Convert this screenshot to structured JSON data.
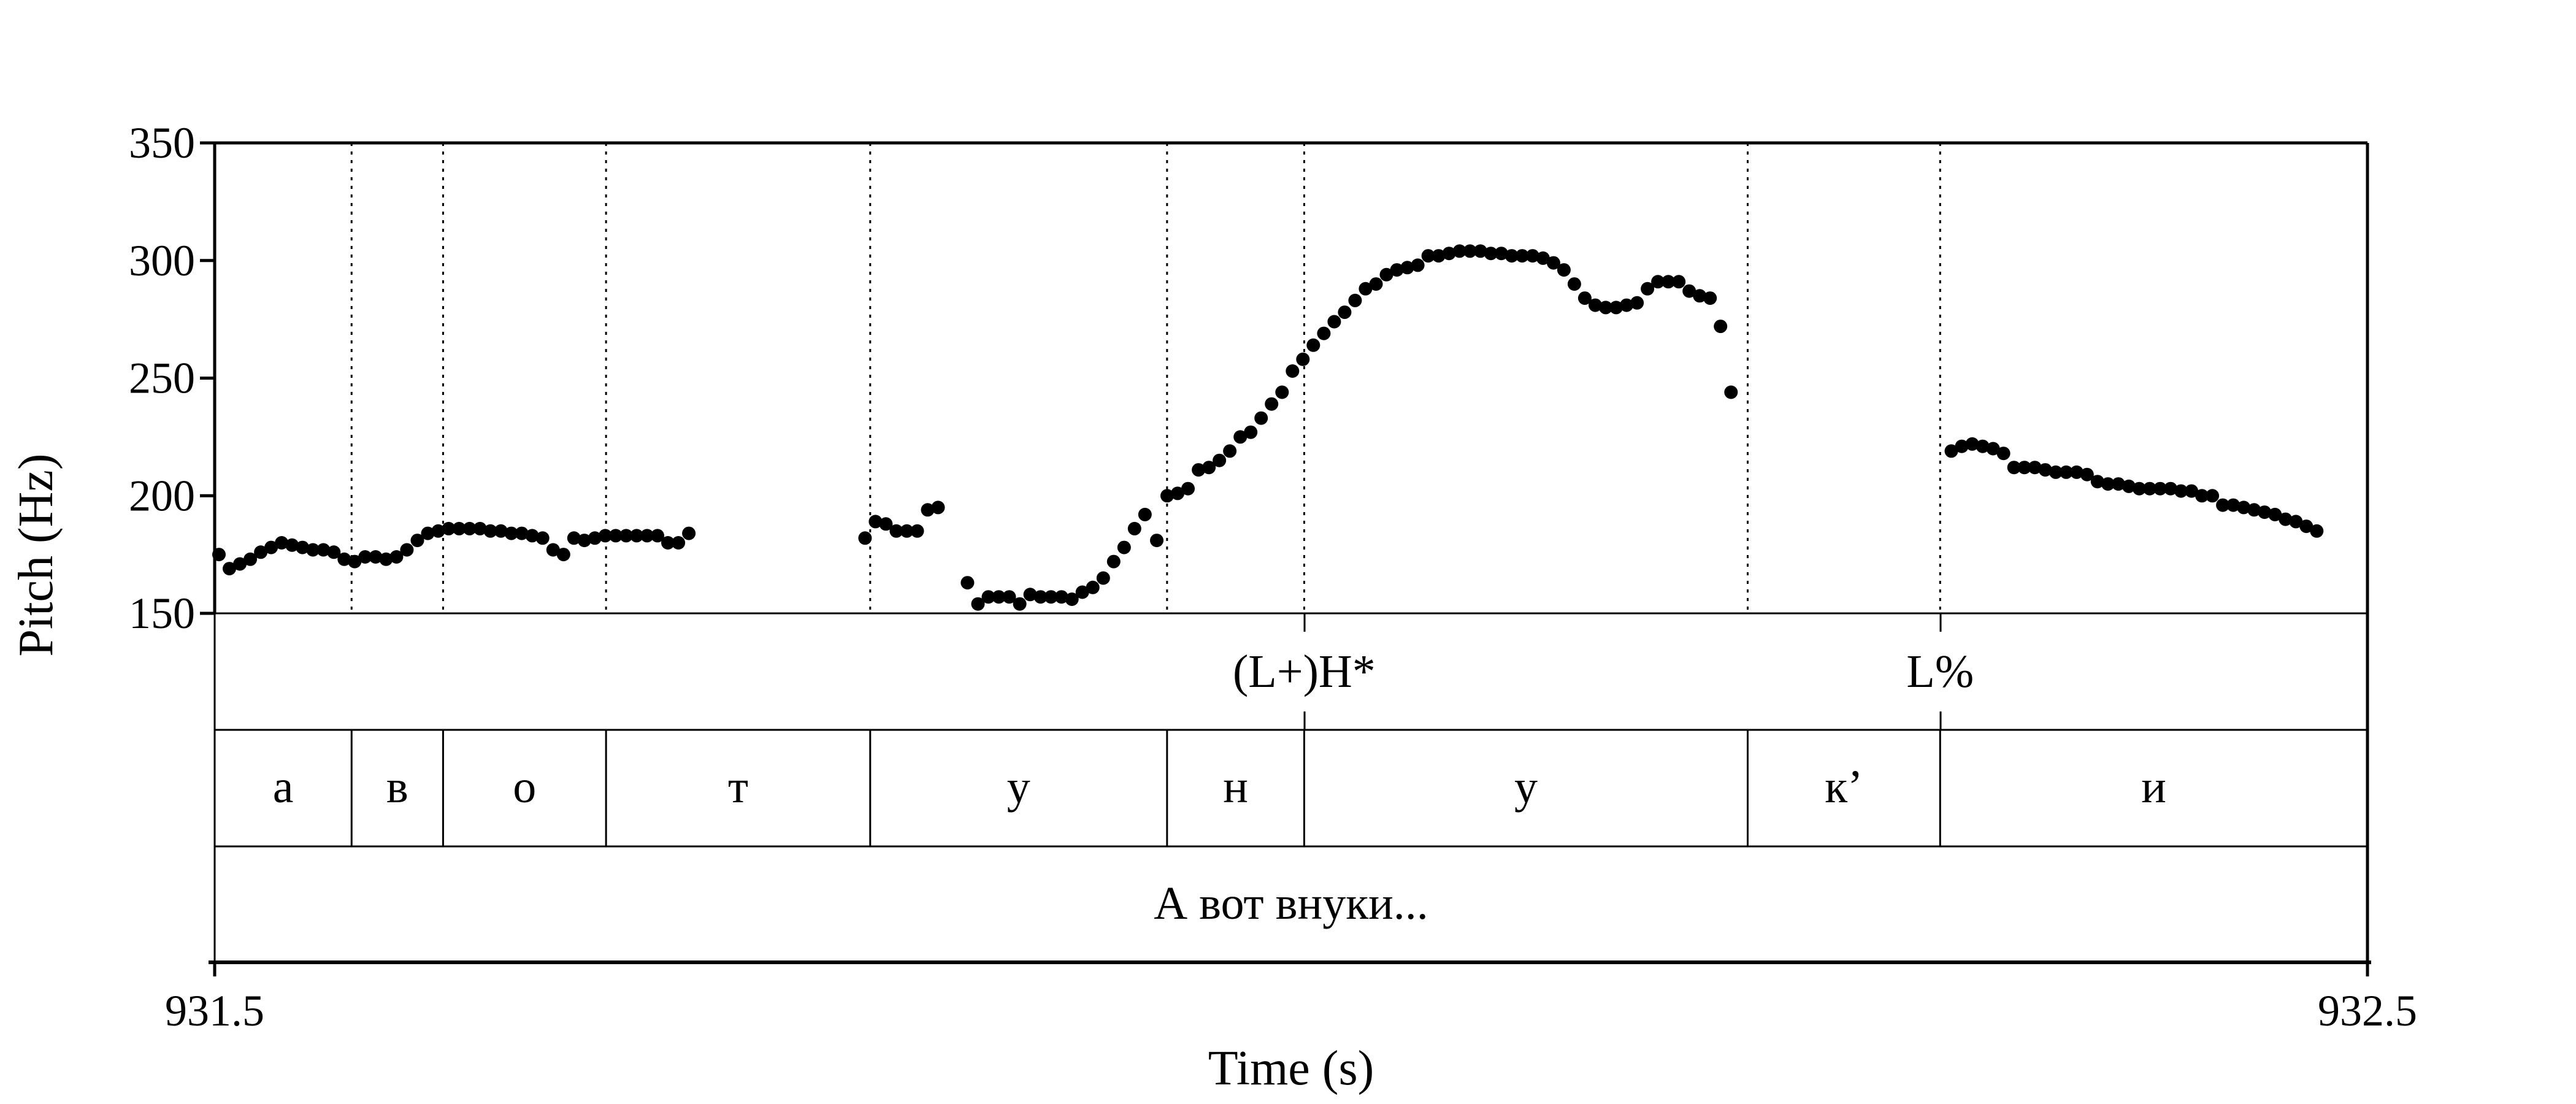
{
  "chart_data": {
    "type": "scatter",
    "xlabel": "Time (s)",
    "ylabel": "Pitch (Hz)",
    "xlim": [
      931.5,
      932.5
    ],
    "ylim": [
      150,
      350
    ],
    "x_tick_labels": [
      "931.5",
      "932.5"
    ],
    "y_tick_labels": [
      "150",
      "200",
      "250",
      "300",
      "350"
    ],
    "y_ticks": [
      150,
      200,
      250,
      300,
      350
    ],
    "grid": false,
    "segment_boundaries": [
      931.5636,
      931.6061,
      931.6818,
      931.8045,
      931.9424,
      932.0061,
      932.2121,
      932.3015
    ],
    "tiers": [
      {
        "name": "tones",
        "points": [
          {
            "time": 932.0061,
            "label": "(L+)H*"
          },
          {
            "time": 932.3015,
            "label": "L%"
          }
        ]
      },
      {
        "name": "segments",
        "intervals": [
          {
            "start": 931.5,
            "end": 931.5636,
            "label": "а"
          },
          {
            "start": 931.5636,
            "end": 931.6061,
            "label": "в"
          },
          {
            "start": 931.6061,
            "end": 931.6818,
            "label": "о"
          },
          {
            "start": 931.6818,
            "end": 931.8045,
            "label": "т"
          },
          {
            "start": 931.8045,
            "end": 931.9424,
            "label": "у"
          },
          {
            "start": 931.9424,
            "end": 932.0061,
            "label": "н"
          },
          {
            "start": 932.0061,
            "end": 932.2121,
            "label": "у"
          },
          {
            "start": 932.2121,
            "end": 932.3015,
            "label": "к’"
          },
          {
            "start": 932.3015,
            "end": 932.5,
            "label": "и"
          }
        ]
      },
      {
        "name": "utterance",
        "intervals": [
          {
            "start": 931.5,
            "end": 932.5,
            "label": "А вот внуки..."
          }
        ]
      }
    ],
    "series": [
      {
        "segments": [
          {
            "x_start": 931.502,
            "x_step": 0.00485,
            "y": [
              175,
              169,
              171,
              173,
              176,
              178,
              180,
              179,
              178,
              177,
              177,
              176,
              173,
              172,
              174,
              174,
              173,
              174,
              177,
              181,
              184,
              185,
              186,
              186,
              186,
              186,
              185,
              185,
              184,
              184,
              183,
              182,
              177,
              175,
              182,
              181,
              182,
              183,
              183,
              183,
              183,
              183,
              183,
              180,
              180,
              184
            ]
          },
          {
            "x_start": 931.8021,
            "x_step": 0.00485,
            "y": [
              182,
              189,
              188,
              185,
              185,
              185,
              194,
              195
            ]
          },
          {
            "x_start": 931.8497,
            "x_step": 0.00485,
            "y": [
              163,
              154,
              157,
              157,
              157,
              154,
              158,
              157,
              157,
              157,
              156,
              159,
              161,
              165,
              172,
              178,
              186,
              192
            ]
          },
          {
            "x_start": 931.9376,
            "x_step": 0.00485,
            "y": [
              181,
              200,
              201,
              203,
              211,
              212,
              215,
              219,
              225,
              227,
              233,
              239,
              244,
              253,
              258,
              264,
              269,
              274,
              278,
              283,
              288,
              290,
              294,
              296,
              297,
              298,
              302,
              302,
              303,
              304,
              304,
              304,
              303,
              303,
              302,
              302,
              302,
              301,
              299,
              296,
              290,
              284,
              281,
              280,
              280,
              281,
              282,
              288,
              291,
              291,
              291,
              287,
              285,
              284,
              272,
              244
            ]
          },
          {
            "x_start": 932.3067,
            "x_step": 0.00485,
            "y": [
              219,
              221,
              222,
              221,
              220,
              218,
              212,
              212,
              212,
              211,
              210,
              210,
              210,
              209,
              206,
              205,
              205,
              204,
              203,
              203,
              203,
              203,
              202,
              202,
              200,
              200,
              196,
              196,
              195,
              194,
              193,
              192,
              190,
              189,
              187,
              185
            ]
          }
        ]
      }
    ]
  }
}
